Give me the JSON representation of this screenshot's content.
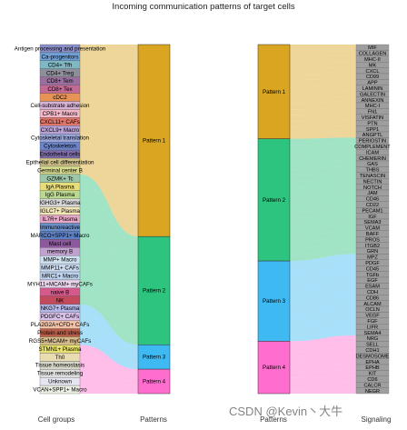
{
  "title": "Incoming communication patterns of target cells",
  "axis_labels": {
    "cell_groups": "Cell groups",
    "patterns_left": "Patterns",
    "patterns_right": "Patterns",
    "signaling": "Signaling"
  },
  "watermark": "CSDN @Kevin丶大牛",
  "cell_groups": [
    {
      "name": "Antigen processing and presentation",
      "color": "#8b8fc9",
      "pattern": 0
    },
    {
      "name": "Ca-progenitors",
      "color": "#6fa1d8",
      "pattern": 0
    },
    {
      "name": "CD4+ Tfh",
      "color": "#7fb8c3",
      "pattern": 0
    },
    {
      "name": "CD4+ Treg",
      "color": "#8f8f9c",
      "pattern": 0
    },
    {
      "name": "CD8+ Tem",
      "color": "#9a6f9f",
      "pattern": 0
    },
    {
      "name": "CD8+ Tex",
      "color": "#c06a94",
      "pattern": 0
    },
    {
      "name": "cDC2",
      "color": "#e89356",
      "pattern": 0
    },
    {
      "name": "Cell-substrate adhesion",
      "color": "#d6b2d6",
      "pattern": 0
    },
    {
      "name": "CPB1+ Macro",
      "color": "#f2b7c9",
      "pattern": 0
    },
    {
      "name": "CXCL11+ CAFs",
      "color": "#e0766a",
      "pattern": 0
    },
    {
      "name": "CXCL9+ Macro",
      "color": "#b9a1d6",
      "pattern": 0
    },
    {
      "name": "Cytoskeletal translation",
      "color": "#9aa6d8",
      "pattern": 0
    },
    {
      "name": "Cytoskeleton",
      "color": "#6c84c8",
      "pattern": 0
    },
    {
      "name": "Endothelial cells",
      "color": "#7b6ba8",
      "pattern": 0
    },
    {
      "name": "Epithelial cell differentiation",
      "color": "#d0c28a",
      "pattern": 0
    },
    {
      "name": "Germinal center B",
      "color": "#d6d98c",
      "pattern": 0
    },
    {
      "name": "GZMK+ Tc",
      "color": "#9cc7a8",
      "pattern": 1
    },
    {
      "name": "IgA Plasma",
      "color": "#e8dc7a",
      "pattern": 1
    },
    {
      "name": "IgG Plasma",
      "color": "#b9d98f",
      "pattern": 1
    },
    {
      "name": "IGHG3+ Plasma",
      "color": "#d6d6d6",
      "pattern": 1
    },
    {
      "name": "IGLC7+ Plasma",
      "color": "#f2e6b8",
      "pattern": 1
    },
    {
      "name": "IL7R+ Plasma",
      "color": "#e6a8c8",
      "pattern": 1
    },
    {
      "name": "Immunoreactive",
      "color": "#6a8fc9",
      "pattern": 1
    },
    {
      "name": "MARCO+SPP1+ Macro",
      "color": "#5c7fc2",
      "pattern": 1
    },
    {
      "name": "Mast cell",
      "color": "#8c5a9c",
      "pattern": 1
    },
    {
      "name": "memory B",
      "color": "#c2a0d0",
      "pattern": 1
    },
    {
      "name": "MMP+ Macro",
      "color": "#cfe0ee",
      "pattern": 1
    },
    {
      "name": "MMP11+ CAFs",
      "color": "#c9d9f0",
      "pattern": 1
    },
    {
      "name": "MRC1+ Macro",
      "color": "#bcd2ec",
      "pattern": 1
    },
    {
      "name": "MYH11+MCAM+ myCAFs",
      "color": "#e9d4ec",
      "pattern": 1
    },
    {
      "name": "naive B",
      "color": "#d45a8c",
      "pattern": 1
    },
    {
      "name": "NK",
      "color": "#c24a5c",
      "pattern": 1
    },
    {
      "name": "NKG7+ Plasma",
      "color": "#b3b8e6",
      "pattern": 2
    },
    {
      "name": "PDGFC+ CAFs",
      "color": "#d8c0e6",
      "pattern": 2
    },
    {
      "name": "PLA2G2A+CFD+ CAFs",
      "color": "#f2c2a8",
      "pattern": 2
    },
    {
      "name": "Protein and stress",
      "color": "#b85c48",
      "pattern": 2
    },
    {
      "name": "RGS5+MCAM+ myCAFs",
      "color": "#d6ba8a",
      "pattern": 2
    },
    {
      "name": "STMN1+ Plasma",
      "color": "#e6e070",
      "pattern": 3
    },
    {
      "name": "Th0",
      "color": "#e8dcb0",
      "pattern": 3
    },
    {
      "name": "Tissue homeostasis",
      "color": "#d6d6c8",
      "pattern": 3
    },
    {
      "name": "Tissue remodeling",
      "color": "#e0e0e0",
      "pattern": 3
    },
    {
      "name": "Unknown",
      "color": "#e6e6f2",
      "pattern": 3
    },
    {
      "name": "VCAN+SPP1+ Macro",
      "color": "#eaf0e2",
      "pattern": 3
    }
  ],
  "patterns": [
    {
      "name": "Pattern 1",
      "color": "#DAA520"
    },
    {
      "name": "Pattern 2",
      "color": "#2DC47F"
    },
    {
      "name": "Pattern 3",
      "color": "#3FB9F2"
    },
    {
      "name": "Pattern 4",
      "color": "#FF6ECF"
    }
  ],
  "left_pattern_shares": [
    0.55,
    0.31,
    0.07,
    0.07
  ],
  "right_pattern_shares": [
    0.27,
    0.35,
    0.23,
    0.15
  ],
  "signaling": [
    "MIF",
    "COLLAGEN",
    "MHC-II",
    "MK",
    "CXCL",
    "CD99",
    "APP",
    "LAMININ",
    "GALECTIN",
    "ANNEXIN",
    "MHC-I",
    "FN1",
    "VISFATIN",
    "PTN",
    "SPP1",
    "ANGPTL",
    "PERIOSTIN",
    "COMPLEMENT",
    "ICAM",
    "CHEMERIN",
    "GAS",
    "THBS",
    "TENASCIN",
    "NECTIN",
    "NOTCH",
    "JAM",
    "CD46",
    "CD22",
    "PECAM1",
    "IGF",
    "SEMA3",
    "VCAM",
    "BAFF",
    "PROS",
    "ITGB2",
    "GRN",
    "MPZ",
    "PDGF",
    "CD45",
    "TGFb",
    "EGF",
    "ESAM",
    "CDH",
    "CD86",
    "ALCAM",
    "OCLN",
    "VEGF",
    "FGF",
    "LIFR",
    "SEMA4",
    "NRG",
    "SELL",
    "CDH1",
    "DESMOSOME",
    "EPHA",
    "EPHB",
    "KIT",
    "CD6",
    "CALCR",
    "NEGR"
  ],
  "signaling_patterns": [
    0,
    0,
    0,
    0,
    0,
    0,
    0,
    0,
    0,
    0,
    0,
    0,
    0,
    0,
    0,
    0,
    1,
    1,
    1,
    1,
    1,
    1,
    1,
    1,
    1,
    1,
    1,
    1,
    1,
    1,
    1,
    1,
    1,
    1,
    1,
    1,
    2,
    2,
    2,
    2,
    2,
    2,
    2,
    2,
    2,
    2,
    2,
    2,
    2,
    2,
    3,
    3,
    3,
    3,
    3,
    3,
    3,
    3,
    3,
    3
  ]
}
